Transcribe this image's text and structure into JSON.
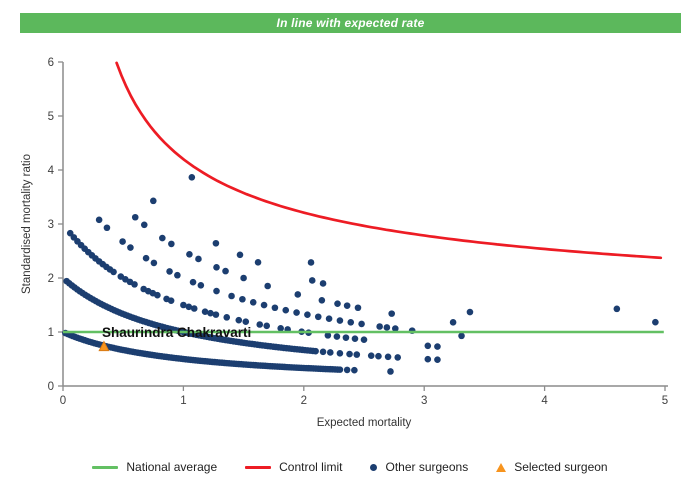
{
  "header": {
    "title": "In line with expected rate",
    "bg_color": "#5cb85c",
    "text_color": "#ffffff"
  },
  "chart_data": {
    "type": "scatter",
    "subtype": "funnel-plot",
    "xlabel": "Expected mortality",
    "ylabel": "Standardised mortality ratio",
    "xlim": [
      0,
      5
    ],
    "ylim": [
      0,
      6
    ],
    "x_ticks": [
      0,
      1,
      2,
      3,
      4,
      5
    ],
    "y_ticks": [
      0,
      1,
      2,
      3,
      4,
      5,
      6
    ],
    "grid": "off",
    "national_average": {
      "y": 1,
      "x_start": 0,
      "x_end": 4.99
    },
    "control_limit": {
      "description": "upper control limit curve, y = base + a/sqrt(x) + b/x",
      "base": 1,
      "a": 2.95,
      "b": 0.25,
      "x_start": 0.445,
      "x_end": 5.0,
      "sample_points": [
        [
          0.45,
          6.0
        ],
        [
          1.0,
          4.2
        ],
        [
          2.0,
          3.21
        ],
        [
          3.0,
          2.79
        ],
        [
          4.0,
          2.54
        ],
        [
          5.0,
          2.37
        ]
      ]
    },
    "selected_surgeon": {
      "name": "Shaurindra Chakravarti",
      "x": 0.34,
      "y": 0.73
    },
    "other_surgeons": {
      "description": "dots lie on hyperbolic bands y = k/(x+1); each band lists x positions via segments {from,to,step,dash:[on,off]} plus extra isolated x values",
      "y_formula": "k/(x+1)",
      "bands": [
        {
          "k": 1,
          "segments": [
            {
              "from": 0.02,
              "to": 2.3,
              "step": 0.02
            }
          ],
          "extra_x": [
            2.36,
            2.42,
            2.72
          ]
        },
        {
          "k": 2,
          "segments": [
            {
              "from": 0.03,
              "to": 2.1,
              "step": 0.022
            }
          ],
          "extra_x": [
            2.16,
            2.22,
            2.3,
            2.38,
            2.44,
            2.56,
            2.62,
            2.7,
            2.78,
            3.03,
            3.11
          ]
        },
        {
          "k": 3,
          "segments": [
            {
              "from": 0.06,
              "to": 0.42,
              "step": 0.03
            },
            {
              "from": 0.48,
              "to": 0.93,
              "step": 0.038,
              "dash": [
                4,
                1
              ]
            },
            {
              "from": 1.0,
              "to": 1.38,
              "step": 0.045,
              "dash": [
                3,
                1
              ]
            },
            {
              "from": 1.46,
              "to": 2.1,
              "step": 0.058,
              "dash": [
                2,
                1
              ]
            },
            {
              "from": 2.2,
              "to": 2.5,
              "step": 0.075
            }
          ],
          "extra_x": [
            3.03,
            3.11
          ]
        },
        {
          "k": 4,
          "segments": [
            {
              "from": 0.3,
              "to": 1.3,
              "step": 0.065,
              "dash": [
                2,
                1
              ]
            },
            {
              "from": 1.4,
              "to": 2.48,
              "step": 0.09
            }
          ],
          "extra_x": [
            2.63,
            2.69,
            2.76,
            2.9,
            3.31
          ]
        },
        {
          "k": 5,
          "segments": [
            {
              "from": 0.6,
              "to": 1.35,
              "step": 0.075,
              "dash": [
                2,
                1
              ]
            }
          ],
          "extra_x": [
            1.5,
            1.7,
            1.95,
            2.15,
            2.28,
            2.36,
            2.45,
            2.73,
            3.24
          ]
        },
        {
          "k": 6,
          "segments": [],
          "extra_x": [
            0.75,
            1.27,
            1.47,
            1.62,
            2.07,
            2.16,
            3.38
          ]
        },
        {
          "k": 7,
          "segments": [],
          "extra_x": [
            2.06,
            4.92
          ]
        },
        {
          "k": 8,
          "segments": [],
          "extra_x": [
            1.07,
            4.6
          ]
        }
      ]
    },
    "colors": {
      "national_average": "#63c063",
      "control_limit": "#ed1c24",
      "other_surgeons": "#1c3e70",
      "selected_surgeon": "#f7941e",
      "selected_surgeon_edge": "#d97b16",
      "axis": "#8c8c8c",
      "tick_label": "#404040",
      "axis_title": "#333333",
      "surgeon_label": "#111111"
    }
  },
  "legend": {
    "items": [
      {
        "label": "National average",
        "swatch": "line-green"
      },
      {
        "label": "Control limit",
        "swatch": "line-red"
      },
      {
        "label": "Other surgeons",
        "swatch": "dot-navy"
      },
      {
        "label": "Selected surgeon",
        "swatch": "triangle-orange"
      }
    ]
  }
}
